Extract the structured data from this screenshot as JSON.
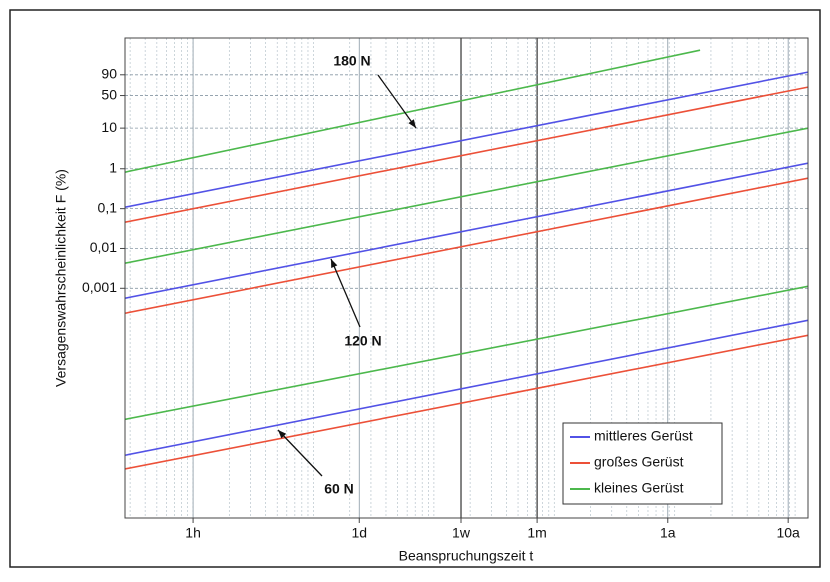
{
  "chart_data": {
    "type": "line",
    "xlabel": "Beanspruchungszeit t",
    "ylabel": "Versagenswahrscheinlichkeit F (%)",
    "xscale": "log",
    "yscale": "weibull",
    "grid": true,
    "legend": "lower right",
    "xlim": [
      0.272,
      128000
    ],
    "ylim": [
      1.7e-09,
      99.9999996
    ],
    "xticks": [
      {
        "value": 1,
        "label": "1h"
      },
      {
        "value": 24,
        "label": "1d"
      },
      {
        "value": 168,
        "label": "1w"
      },
      {
        "value": 720,
        "label": "1m"
      },
      {
        "value": 8760,
        "label": "1a"
      },
      {
        "value": 87600,
        "label": "10a"
      }
    ],
    "yticks": [
      90,
      50,
      10,
      1,
      {
        "value": 0.1,
        "label": "0,1"
      },
      {
        "value": 0.01,
        "label": "0,01"
      },
      {
        "value": 0.001,
        "label": "0,001"
      }
    ],
    "series": [
      {
        "name": "mittleres Gerüst",
        "color": "#5252e6",
        "x": [
          0.272,
          128000,
          null,
          0.272,
          128000,
          null,
          0.272,
          128000
        ],
        "values": [
          0.109,
          93.2,
          null,
          0.000562,
          1.38,
          null,
          6.4e-08,
          0.000157
        ]
      },
      {
        "name": "großes Gerüst",
        "color": "#ec5038",
        "x": [
          0.272,
          128000,
          null,
          0.272,
          128000,
          null,
          0.272,
          128000
        ],
        "values": [
          0.0457,
          67.7,
          null,
          0.000236,
          0.582,
          null,
          2.9e-08,
          6.6e-05
        ]
      },
      {
        "name": "kleines Gerüst",
        "color": "#4cb84c",
        "x": [
          0.272,
          16250,
          null,
          0.272,
          128000,
          null,
          0.272,
          128000
        ],
        "values": [
          0.822,
          99.993,
          null,
          0.00427,
          10,
          null,
          5.1e-07,
          0.00112
        ]
      }
    ],
    "annotations": [
      "180 N",
      "120 N",
      "60 N"
    ]
  }
}
